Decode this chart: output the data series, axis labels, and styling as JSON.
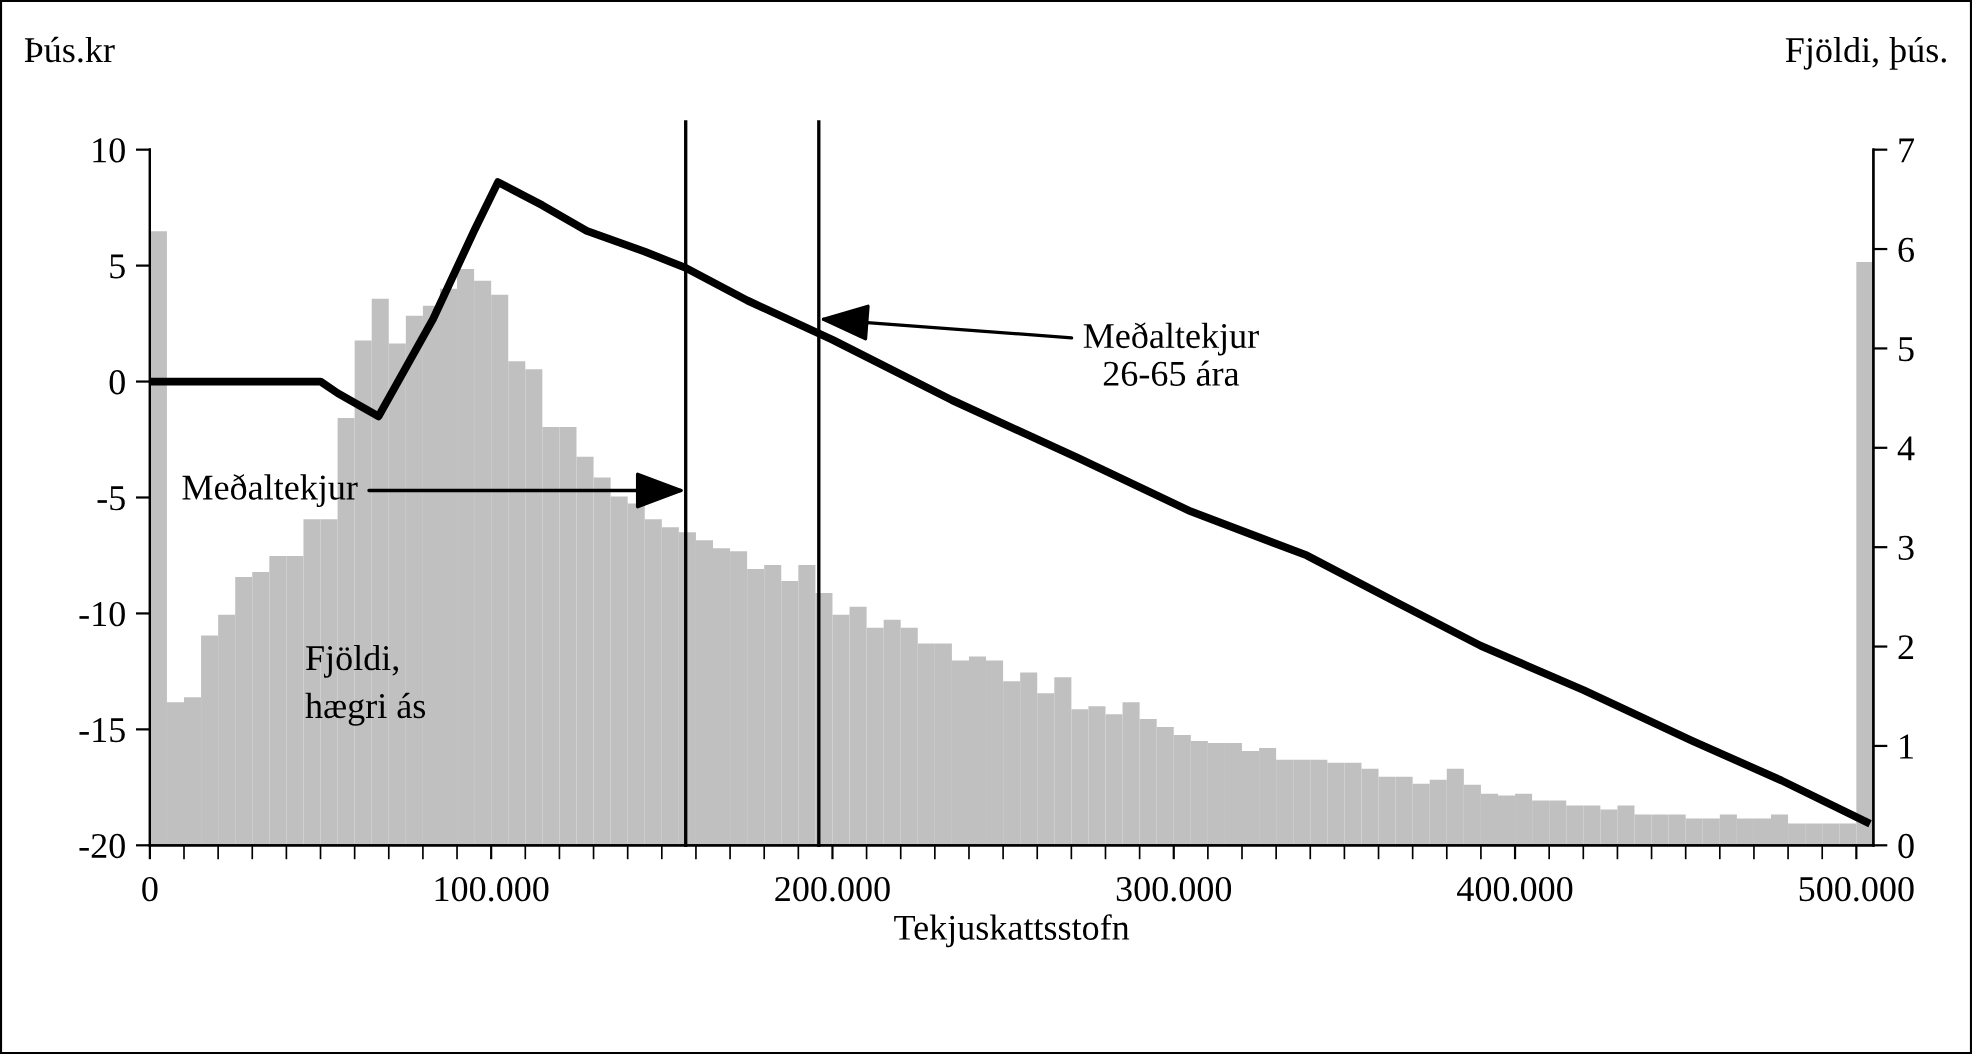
{
  "chart_data": {
    "type": "histogram",
    "xlabel": "Tekjuskattsstofn",
    "ylabel": "Þús.kr",
    "y2label": "Fjöldi, þús.",
    "xlim": [
      0,
      505000
    ],
    "ylim": [
      -20,
      10
    ],
    "y2lim": [
      0,
      7
    ],
    "xticks": [
      0,
      {
        "value": 10000,
        "label": null
      },
      {
        "value": 20000,
        "label": null
      },
      {
        "value": 30000,
        "label": null
      },
      {
        "value": 40000,
        "label": null
      },
      {
        "value": 50000,
        "label": null
      },
      {
        "value": 60000,
        "label": null
      },
      {
        "value": 70000,
        "label": null
      },
      {
        "value": 80000,
        "label": null
      },
      {
        "value": 90000,
        "label": null
      },
      {
        "value": 100000,
        "label": "100.000"
      },
      {
        "value": 110000,
        "label": null
      },
      {
        "value": 120000,
        "label": null
      },
      {
        "value": 130000,
        "label": null
      },
      {
        "value": 140000,
        "label": null
      },
      {
        "value": 150000,
        "label": null
      },
      {
        "value": 160000,
        "label": null
      },
      {
        "value": 170000,
        "label": null
      },
      {
        "value": 180000,
        "label": null
      },
      {
        "value": 190000,
        "label": null
      },
      {
        "value": 200000,
        "label": "200.000"
      },
      {
        "value": 210000,
        "label": null
      },
      {
        "value": 220000,
        "label": null
      },
      {
        "value": 230000,
        "label": null
      },
      {
        "value": 240000,
        "label": null
      },
      {
        "value": 250000,
        "label": null
      },
      {
        "value": 260000,
        "label": null
      },
      {
        "value": 270000,
        "label": null
      },
      {
        "value": 280000,
        "label": null
      },
      {
        "value": 290000,
        "label": null
      },
      {
        "value": 300000,
        "label": "300.000"
      },
      {
        "value": 310000,
        "label": null
      },
      {
        "value": 320000,
        "label": null
      },
      {
        "value": 330000,
        "label": null
      },
      {
        "value": 340000,
        "label": null
      },
      {
        "value": 350000,
        "label": null
      },
      {
        "value": 360000,
        "label": null
      },
      {
        "value": 370000,
        "label": null
      },
      {
        "value": 380000,
        "label": null
      },
      {
        "value": 390000,
        "label": null
      },
      {
        "value": 400000,
        "label": "400.000"
      },
      {
        "value": 410000,
        "label": null
      },
      {
        "value": 420000,
        "label": null
      },
      {
        "value": 430000,
        "label": null
      },
      {
        "value": 440000,
        "label": null
      },
      {
        "value": 450000,
        "label": null
      },
      {
        "value": 460000,
        "label": null
      },
      {
        "value": 470000,
        "label": null
      },
      {
        "value": 480000,
        "label": null
      },
      {
        "value": 490000,
        "label": null
      },
      {
        "value": 500000,
        "label": "500.000"
      }
    ],
    "yticks": [
      -20,
      -15,
      -10,
      -5,
      0,
      5,
      10
    ],
    "y2ticks": [
      0,
      1,
      2,
      3,
      4,
      5,
      6,
      7
    ],
    "series": [
      {
        "axis": "y2",
        "color": "#c0c0c0",
        "bins": [
          0,
          5000,
          10000,
          15000,
          20000,
          25000,
          30000,
          35000,
          40000,
          45000,
          50000,
          55000,
          60000,
          65000,
          70000,
          75000,
          80000,
          85000,
          90000,
          95000,
          100000,
          105000,
          110000,
          115000,
          120000,
          125000,
          130000,
          135000,
          140000,
          145000,
          150000,
          155000,
          160000,
          165000,
          170000,
          175000,
          180000,
          185000,
          190000,
          195000,
          200000,
          205000,
          210000,
          215000,
          220000,
          225000,
          230000,
          235000,
          240000,
          245000,
          250000,
          255000,
          260000,
          265000,
          270000,
          275000,
          280000,
          285000,
          290000,
          295000,
          300000,
          305000,
          310000,
          315000,
          320000,
          325000,
          330000,
          335000,
          340000,
          345000,
          350000,
          355000,
          360000,
          365000,
          370000,
          375000,
          380000,
          385000,
          390000,
          395000,
          400000,
          405000,
          410000,
          415000,
          420000,
          425000,
          430000,
          435000,
          440000,
          445000,
          450000,
          455000,
          460000,
          465000,
          470000,
          475000,
          480000,
          485000,
          490000,
          495000,
          500000,
          505000
        ],
        "values": [
          6.18,
          1.44,
          1.49,
          2.11,
          2.32,
          2.7,
          2.75,
          2.91,
          2.91,
          3.28,
          3.28,
          4.3,
          5.08,
          5.5,
          5.05,
          5.33,
          5.43,
          5.6,
          5.8,
          5.68,
          5.54,
          4.87,
          4.79,
          4.21,
          4.21,
          3.91,
          3.7,
          3.51,
          3.44,
          3.28,
          3.2,
          3.15,
          3.07,
          2.99,
          2.96,
          2.78,
          2.82,
          2.66,
          2.82,
          2.54,
          2.32,
          2.4,
          2.19,
          2.27,
          2.19,
          2.03,
          2.03,
          1.86,
          1.9,
          1.86,
          1.65,
          1.74,
          1.53,
          1.69,
          1.37,
          1.4,
          1.32,
          1.44,
          1.27,
          1.19,
          1.11,
          1.05,
          1.03,
          1.03,
          0.95,
          0.98,
          0.86,
          0.86,
          0.86,
          0.83,
          0.83,
          0.77,
          0.69,
          0.69,
          0.62,
          0.66,
          0.77,
          0.61,
          0.52,
          0.5,
          0.52,
          0.45,
          0.45,
          0.4,
          0.4,
          0.36,
          0.4,
          0.31,
          0.31,
          0.31,
          0.27,
          0.27,
          0.31,
          0.27,
          0.27,
          0.31,
          0.22,
          0.22,
          0.22,
          0.22,
          5.87
        ]
      },
      {
        "type": "line",
        "axis": "y",
        "color": "#000000",
        "x": [
          0,
          50000,
          55000,
          67000,
          83000,
          95000,
          102000,
          115000,
          128000,
          145000,
          157000,
          175000,
          200000,
          235000,
          272000,
          305000,
          339000,
          365000,
          390000,
          420000,
          452000,
          478000,
          503000
        ],
        "values": [
          0,
          0,
          -0.5,
          -1.5,
          2.7,
          6.5,
          8.6,
          7.6,
          6.5,
          5.6,
          4.9,
          3.5,
          1.8,
          -0.8,
          -3.3,
          -5.6,
          -7.5,
          -9.5,
          -11.4,
          -13.3,
          -15.5,
          -17.2,
          -19.0
        ]
      }
    ],
    "ref_lines": [
      {
        "axis": "x",
        "value": 157000,
        "color": "#000000"
      },
      {
        "axis": "x",
        "value": 196000,
        "color": "#000000"
      }
    ],
    "annotations": [
      {
        "text": "Meðaltekjur",
        "x": 157000,
        "y": -4.7
      },
      {
        "text": "Meðaltekjur\n26-65 ára",
        "x": 196000,
        "y": 2.7
      },
      "Fjöldi,\nhægri ás"
    ],
    "grid": false
  }
}
